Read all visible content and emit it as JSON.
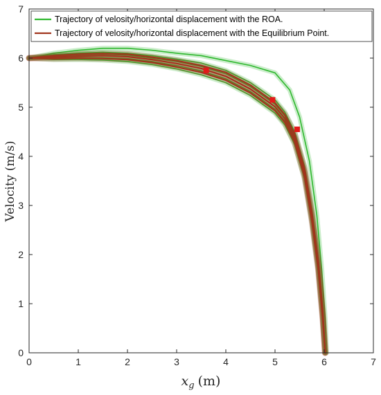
{
  "chart_data": {
    "type": "line",
    "title": "",
    "xlabel": "x_g (m)",
    "xlabel_main": "x",
    "xlabel_sub": "g",
    "xlabel_unit": "(m)",
    "ylabel": "Velocity (m/s)",
    "xlim": [
      0,
      7
    ],
    "ylim": [
      0,
      7
    ],
    "xticks": [
      "0",
      "1",
      "2",
      "3",
      "4",
      "5",
      "6",
      "7"
    ],
    "yticks": [
      "0",
      "1",
      "2",
      "3",
      "4",
      "5",
      "6",
      "7"
    ],
    "grid": false,
    "legend_position": "top-left",
    "series": [
      {
        "name": "Trajectory of velosity/horizontal displacement with the ROA.",
        "color": "#2eb82e",
        "style": "band",
        "curves": [
          {
            "x": [
              0,
              0.5,
              1.0,
              1.5,
              2.0,
              2.5,
              3.0,
              3.5,
              4.0,
              4.5,
              5.0,
              5.3,
              5.5,
              5.7,
              5.85,
              5.95,
              6.02,
              6.05
            ],
            "y": [
              6.0,
              6.1,
              6.16,
              6.2,
              6.2,
              6.16,
              6.1,
              6.05,
              5.95,
              5.85,
              5.7,
              5.35,
              4.8,
              3.9,
              2.8,
              1.7,
              0.7,
              0.0
            ]
          },
          {
            "x": [
              0,
              0.5,
              1.0,
              1.5,
              2.0,
              2.5,
              3.0,
              3.5,
              4.0,
              4.5,
              5.0,
              5.2,
              5.4,
              5.6,
              5.75,
              5.88,
              5.97,
              6.02
            ],
            "y": [
              6.0,
              6.07,
              6.1,
              6.12,
              6.1,
              6.05,
              5.98,
              5.9,
              5.75,
              5.5,
              5.15,
              4.9,
              4.5,
              3.8,
              2.9,
              1.9,
              0.9,
              0.0
            ]
          },
          {
            "x": [
              0,
              0.5,
              1.0,
              1.5,
              2.0,
              2.5,
              3.0,
              3.5,
              4.0,
              4.5,
              5.0,
              5.2,
              5.4,
              5.6,
              5.75,
              5.88,
              5.97,
              6.02
            ],
            "y": [
              6.0,
              6.04,
              6.07,
              6.08,
              6.06,
              6.0,
              5.93,
              5.83,
              5.68,
              5.42,
              5.06,
              4.82,
              4.42,
              3.72,
              2.82,
              1.82,
              0.82,
              0.0
            ]
          },
          {
            "x": [
              0,
              0.5,
              1.0,
              1.5,
              2.0,
              2.5,
              3.0,
              3.5,
              4.0,
              4.5,
              5.0,
              5.2,
              5.4,
              5.6,
              5.75,
              5.88,
              5.97,
              6.02
            ],
            "y": [
              6.0,
              6.0,
              6.01,
              6.01,
              5.99,
              5.93,
              5.85,
              5.74,
              5.58,
              5.32,
              4.96,
              4.72,
              4.32,
              3.62,
              2.72,
              1.72,
              0.72,
              0.0
            ]
          },
          {
            "x": [
              0,
              0.5,
              1.0,
              1.5,
              2.0,
              2.5,
              3.0,
              3.5,
              4.0,
              4.5,
              5.0,
              5.2,
              5.4,
              5.6,
              5.75,
              5.88,
              5.97,
              6.02
            ],
            "y": [
              6.0,
              5.97,
              5.97,
              5.96,
              5.93,
              5.87,
              5.78,
              5.66,
              5.5,
              5.24,
              4.88,
              4.64,
              4.24,
              3.54,
              2.64,
              1.64,
              0.64,
              0.0
            ]
          }
        ]
      },
      {
        "name": "Trajectory of  velosity/horizontal displacement with the Equilibrium Point.",
        "color": "#a0341c",
        "style": "band",
        "curves": [
          {
            "x": [
              0,
              0.5,
              1.0,
              1.5,
              2.0,
              2.5,
              3.0,
              3.5,
              4.0,
              4.5,
              5.0,
              5.2,
              5.4,
              5.6,
              5.75,
              5.88,
              5.97,
              6.02
            ],
            "y": [
              6.0,
              6.05,
              6.08,
              6.09,
              6.08,
              6.02,
              5.95,
              5.85,
              5.71,
              5.45,
              5.09,
              4.85,
              4.45,
              3.75,
              2.85,
              1.85,
              0.85,
              0.0
            ]
          },
          {
            "x": [
              0,
              0.5,
              1.0,
              1.5,
              2.0,
              2.5,
              3.0,
              3.5,
              4.0,
              4.5,
              5.0,
              5.2,
              5.4,
              5.6,
              5.75,
              5.88,
              5.97,
              6.02
            ],
            "y": [
              6.0,
              6.02,
              6.04,
              6.05,
              6.03,
              5.97,
              5.89,
              5.79,
              5.63,
              5.37,
              5.01,
              4.77,
              4.37,
              3.67,
              2.77,
              1.77,
              0.77,
              0.0
            ]
          },
          {
            "x": [
              0,
              0.5,
              1.0,
              1.5,
              2.0,
              2.5,
              3.0,
              3.5,
              4.0,
              4.5,
              5.0,
              5.2,
              5.4,
              5.6,
              5.75,
              5.88,
              5.97,
              6.02
            ],
            "y": [
              6.0,
              5.99,
              6.0,
              5.99,
              5.97,
              5.91,
              5.82,
              5.71,
              5.55,
              5.29,
              4.93,
              4.69,
              4.29,
              3.59,
              2.69,
              1.69,
              0.69,
              0.0
            ]
          }
        ]
      }
    ],
    "markers": {
      "color": "#e31a1a",
      "points": [
        {
          "x": 3.6,
          "y": 5.75
        },
        {
          "x": 4.95,
          "y": 5.15
        },
        {
          "x": 5.45,
          "y": 4.55
        }
      ]
    }
  }
}
